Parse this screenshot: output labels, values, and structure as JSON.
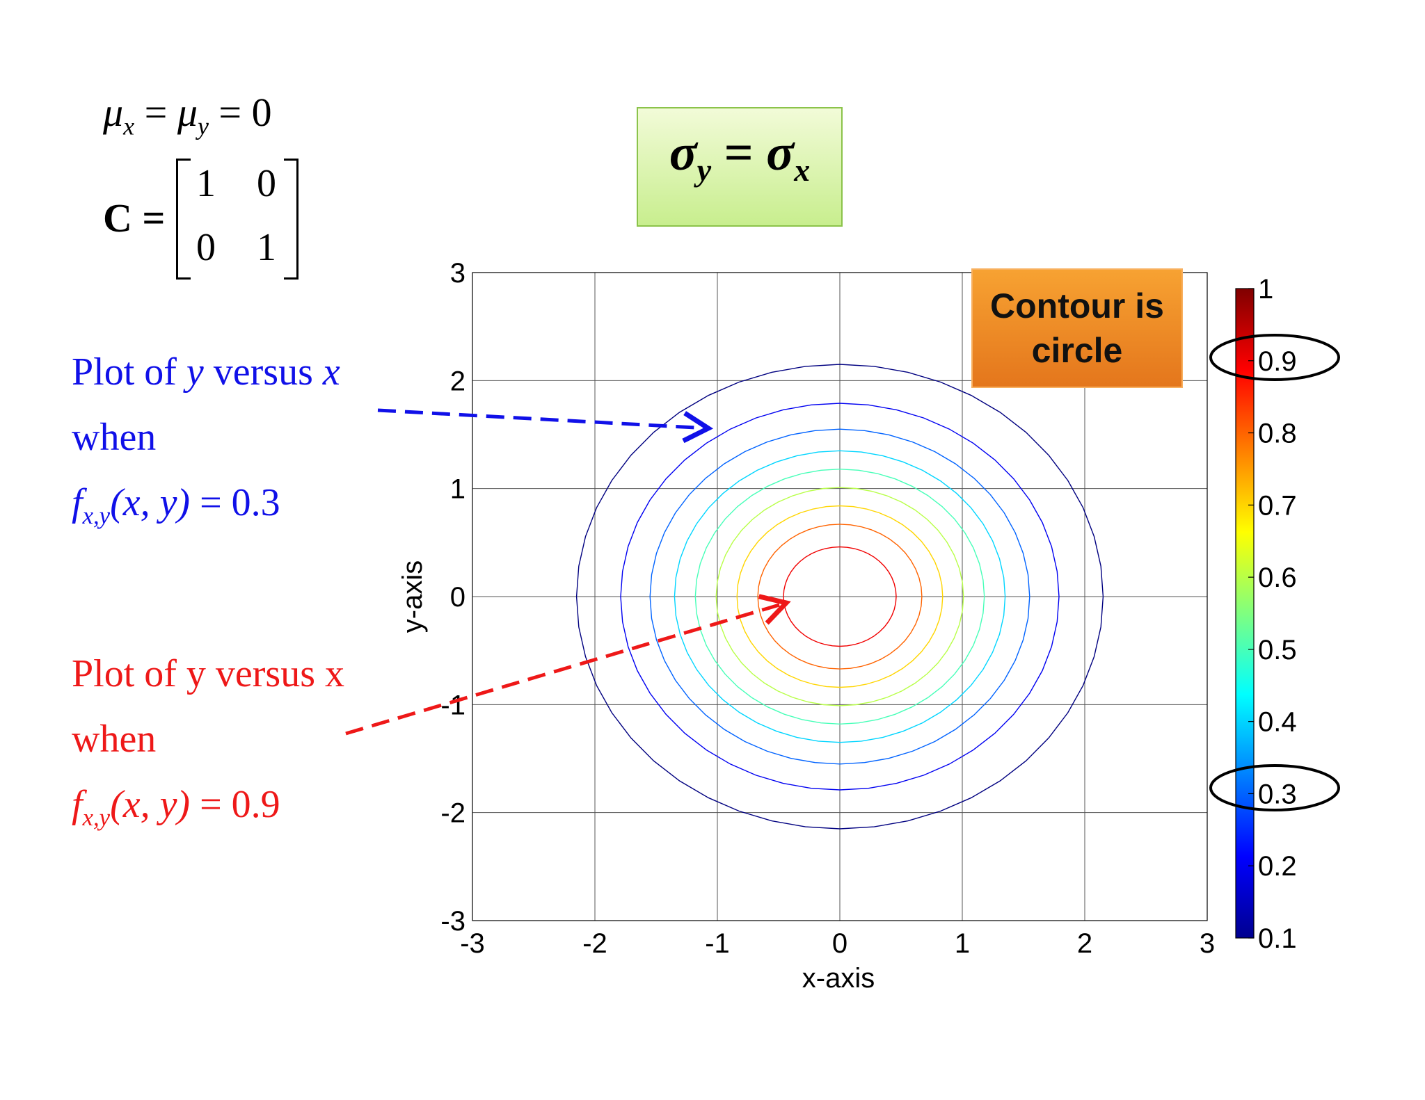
{
  "equations": {
    "mean_symbol_x": "μ",
    "mean_sub_x": "x",
    "equals": "=",
    "mean_symbol_y": "μ",
    "mean_sub_y": "y",
    "mean_value": "0",
    "cov_label": "C",
    "cov_matrix": [
      "1",
      "0",
      "0",
      "1"
    ]
  },
  "title_box": {
    "sigma1": "σ",
    "sub1": "y",
    "eq": "=",
    "sigma2": "σ",
    "sub2": "x",
    "bg_color": "#d8f2a8"
  },
  "callout": {
    "line1": "Contour is",
    "line2": "circle",
    "bg_color": "#ef8a24"
  },
  "annotations": [
    {
      "color": "#1010e8",
      "line1_a": "Plot of ",
      "line1_b": "y",
      "line1_c": " versus ",
      "line1_d": "x",
      "line2": "when",
      "fn": "f",
      "fn_sub": "x,y",
      "args": "(x, y)",
      "eq": " = ",
      "value": "0.3"
    },
    {
      "color": "#ee1818",
      "line1_a": "Plot of ",
      "line1_b": "y",
      "line1_c": " versus ",
      "line1_d": "x",
      "line2": "when",
      "fn": "f",
      "fn_sub": "x,y",
      "args": "(x, y)",
      "eq": " = ",
      "value": "0.9"
    }
  ],
  "chart_data": {
    "type": "contour",
    "function": "bivariate normal pdf scaled, mu_x = mu_y = 0, sigma_x = sigma_y = 1",
    "xlabel": "x-axis",
    "ylabel": "y-axis",
    "xlim": [
      -3,
      3
    ],
    "ylim": [
      -3,
      3
    ],
    "xticks": [
      "-3",
      "-2",
      "-1",
      "0",
      "1",
      "2",
      "3"
    ],
    "yticks": [
      "-3",
      "-2",
      "-1",
      "0",
      "1",
      "2",
      "3"
    ],
    "grid": true,
    "levels": [
      0.1,
      0.2,
      0.3,
      0.4,
      0.5,
      0.6,
      0.7,
      0.8,
      0.9
    ],
    "contour_radii": [
      2.15,
      1.79,
      1.55,
      1.35,
      1.18,
      1.01,
      0.84,
      0.67,
      0.46
    ],
    "colormap": "jet",
    "colorbar": {
      "range": [
        0.1,
        1
      ],
      "ticks": [
        "0.1",
        "0.2",
        "0.3",
        "0.4",
        "0.5",
        "0.6",
        "0.7",
        "0.8",
        "0.9",
        "1"
      ],
      "highlighted_ticks": [
        "0.3",
        "0.9"
      ]
    },
    "arrows": [
      {
        "color": "#1010e8",
        "target": [
          -1.0,
          1.55
        ]
      },
      {
        "color": "#ee1818",
        "target": [
          -0.45,
          -0.05
        ]
      }
    ]
  }
}
